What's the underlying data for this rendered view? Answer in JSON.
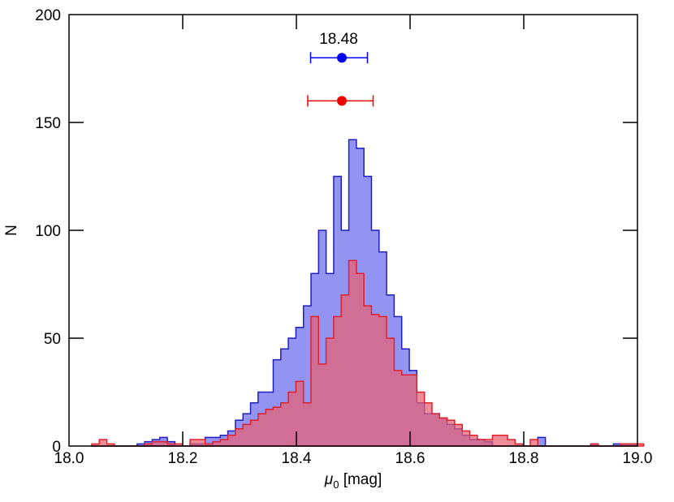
{
  "chart_data": {
    "type": "histogram",
    "xlabel_symbol": "μ",
    "xlabel_sub": "0",
    "xlabel_unit": " [mag]",
    "ylabel": "N",
    "xlim": [
      18.0,
      19.0
    ],
    "ylim": [
      0,
      200
    ],
    "x_ticks": [
      18.0,
      18.2,
      18.4,
      18.6,
      18.8,
      19.0
    ],
    "x_tick_labels": [
      "18.0",
      "18.2",
      "18.4",
      "18.6",
      "18.8",
      "19.0"
    ],
    "y_ticks": [
      0,
      50,
      100,
      150,
      200
    ],
    "y_tick_labels": [
      "0",
      "50",
      "100",
      "150",
      "200"
    ],
    "bin_start": 18.04,
    "bin_width": 0.0133,
    "grid": false,
    "series": [
      {
        "color": "#1f1fbf",
        "fill": "#8080f0",
        "values": [
          0,
          0,
          0,
          0,
          0,
          0,
          1,
          2,
          3,
          4,
          2,
          0,
          0,
          1,
          1,
          4,
          4,
          5,
          7,
          12,
          15,
          20,
          25,
          25,
          40,
          45,
          50,
          55,
          65,
          80,
          100,
          80,
          125,
          100,
          142,
          138,
          125,
          100,
          90,
          70,
          60,
          45,
          35,
          20,
          15,
          15,
          13,
          10,
          8,
          5,
          3,
          3,
          2,
          0,
          0,
          0,
          0,
          0,
          0,
          4,
          0,
          0,
          0,
          0,
          0,
          0,
          1,
          0,
          0,
          1,
          1,
          1
        ]
      },
      {
        "color": "#e0202a",
        "fill": "#e86070",
        "values": [
          1,
          3,
          1,
          0,
          0,
          0,
          0,
          1,
          2,
          2,
          1,
          1,
          0,
          3,
          3,
          1,
          2,
          3,
          5,
          8,
          10,
          12,
          15,
          17,
          18,
          20,
          25,
          30,
          20,
          60,
          38,
          50,
          60,
          70,
          86,
          80,
          65,
          61,
          60,
          50,
          35,
          33,
          33,
          25,
          20,
          15,
          13,
          12,
          10,
          7,
          5,
          3,
          3,
          5,
          5,
          3,
          1,
          0,
          3,
          0,
          0,
          0,
          0,
          0,
          0,
          0,
          1,
          0,
          0,
          0,
          1,
          1,
          1
        ]
      }
    ],
    "markers": [
      {
        "x": 18.48,
        "y": 180,
        "xerr_low": 18.425,
        "xerr_high": 18.525,
        "color": "#0000ee",
        "label": "18.48"
      },
      {
        "x": 18.48,
        "y": 160,
        "xerr_low": 18.42,
        "xerr_high": 18.535,
        "color": "#ee0000"
      }
    ]
  }
}
